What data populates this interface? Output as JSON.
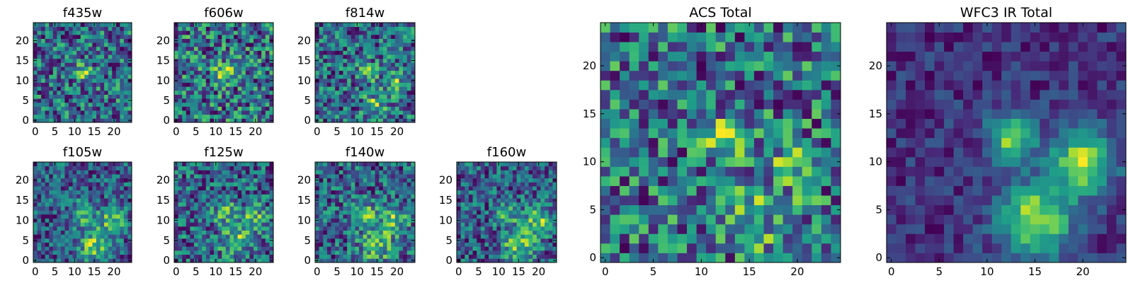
{
  "chart_data": [
    {
      "type": "heatmap",
      "title": "f435w",
      "grid_size": 25,
      "colormap": "viridis",
      "x_ticks": [
        0,
        5,
        10,
        15,
        20
      ],
      "y_ticks": [
        0,
        5,
        10,
        15,
        20
      ],
      "xlim": [
        -0.5,
        24.5
      ],
      "ylim": [
        -0.5,
        24.5
      ],
      "seed": 11,
      "noise_scale": 0.42,
      "sources": [
        {
          "x": 12,
          "y": 12.5,
          "sigma": 1.6,
          "amp": 0.45
        }
      ]
    },
    {
      "type": "heatmap",
      "title": "f606w",
      "grid_size": 25,
      "colormap": "viridis",
      "x_ticks": [
        0,
        5,
        10,
        15,
        20
      ],
      "y_ticks": [
        0,
        5,
        10,
        15,
        20
      ],
      "xlim": [
        -0.5,
        24.5
      ],
      "ylim": [
        -0.5,
        24.5
      ],
      "seed": 23,
      "noise_scale": 0.36,
      "sources": [
        {
          "x": 12.5,
          "y": 12,
          "sigma": 1.6,
          "amp": 0.55
        }
      ]
    },
    {
      "type": "heatmap",
      "title": "f814w",
      "grid_size": 25,
      "colormap": "viridis",
      "x_ticks": [
        0,
        5,
        10,
        15,
        20
      ],
      "y_ticks": [
        0,
        5,
        10,
        15,
        20
      ],
      "xlim": [
        -0.5,
        24.5
      ],
      "ylim": [
        -0.5,
        24.5
      ],
      "seed": 37,
      "noise_scale": 0.42,
      "sources": [
        {
          "x": 13,
          "y": 12,
          "sigma": 1.6,
          "amp": 0.45
        },
        {
          "x": 19.5,
          "y": 9.5,
          "sigma": 1.8,
          "amp": 0.4
        },
        {
          "x": 14.5,
          "y": 4,
          "sigma": 1.8,
          "amp": 0.45
        }
      ]
    },
    {
      "type": "heatmap",
      "title": "f105w",
      "grid_size": 25,
      "colormap": "viridis",
      "x_ticks": [
        0,
        5,
        10,
        15,
        20
      ],
      "y_ticks": [
        0,
        5,
        10,
        15,
        20
      ],
      "xlim": [
        -0.5,
        24.5
      ],
      "ylim": [
        -0.5,
        24.5
      ],
      "seed": 41,
      "noise_scale": 0.32,
      "sources": [
        {
          "x": 12.5,
          "y": 12,
          "sigma": 2.0,
          "amp": 0.45
        },
        {
          "x": 19.5,
          "y": 10,
          "sigma": 2.2,
          "amp": 0.45
        },
        {
          "x": 15,
          "y": 4,
          "sigma": 2.8,
          "amp": 0.5
        }
      ]
    },
    {
      "type": "heatmap",
      "title": "f125w",
      "grid_size": 25,
      "colormap": "viridis",
      "x_ticks": [
        0,
        5,
        10,
        15,
        20
      ],
      "y_ticks": [
        0,
        5,
        10,
        15,
        20
      ],
      "xlim": [
        -0.5,
        24.5
      ],
      "ylim": [
        -0.5,
        24.5
      ],
      "seed": 53,
      "noise_scale": 0.4,
      "sources": [
        {
          "x": 12.5,
          "y": 12,
          "sigma": 2.0,
          "amp": 0.35
        },
        {
          "x": 19.5,
          "y": 10,
          "sigma": 2.2,
          "amp": 0.45
        },
        {
          "x": 15,
          "y": 5,
          "sigma": 2.6,
          "amp": 0.45
        }
      ]
    },
    {
      "type": "heatmap",
      "title": "f140w",
      "grid_size": 25,
      "colormap": "viridis",
      "x_ticks": [
        0,
        5,
        10,
        15,
        20
      ],
      "y_ticks": [
        0,
        5,
        10,
        15,
        20
      ],
      "xlim": [
        -0.5,
        24.5
      ],
      "ylim": [
        -0.5,
        24.5
      ],
      "seed": 67,
      "noise_scale": 0.36,
      "sources": [
        {
          "x": 12.5,
          "y": 12,
          "sigma": 2.0,
          "amp": 0.4
        },
        {
          "x": 19.5,
          "y": 10,
          "sigma": 2.2,
          "amp": 0.45
        },
        {
          "x": 15,
          "y": 4,
          "sigma": 2.8,
          "amp": 0.5
        }
      ]
    },
    {
      "type": "heatmap",
      "title": "f160w",
      "grid_size": 25,
      "colormap": "viridis",
      "x_ticks": [
        0,
        5,
        10,
        15,
        20
      ],
      "y_ticks": [
        0,
        5,
        10,
        15,
        20
      ],
      "xlim": [
        -0.5,
        24.5
      ],
      "ylim": [
        -0.5,
        24.5
      ],
      "seed": 79,
      "noise_scale": 0.3,
      "sources": [
        {
          "x": 12.5,
          "y": 12,
          "sigma": 2.0,
          "amp": 0.35
        },
        {
          "x": 20,
          "y": 10,
          "sigma": 2.2,
          "amp": 0.45
        },
        {
          "x": 15,
          "y": 4,
          "sigma": 2.8,
          "amp": 0.45
        }
      ]
    },
    {
      "type": "heatmap",
      "title": "ACS Total",
      "grid_size": 25,
      "colormap": "viridis",
      "x_ticks": [
        0,
        5,
        10,
        15,
        20
      ],
      "y_ticks": [
        0,
        5,
        10,
        15,
        20
      ],
      "xlim": [
        -0.5,
        24.5
      ],
      "ylim": [
        -0.5,
        24.5
      ],
      "seed": 97,
      "noise_scale": 0.34,
      "sources": [
        {
          "x": 12.5,
          "y": 12.5,
          "sigma": 1.4,
          "amp": 0.45
        },
        {
          "x": 19.5,
          "y": 10,
          "sigma": 1.8,
          "amp": 0.25
        },
        {
          "x": 16,
          "y": 4,
          "sigma": 2.6,
          "amp": 0.2
        }
      ]
    },
    {
      "type": "heatmap",
      "title": "WFC3 IR Total",
      "grid_size": 25,
      "colormap": "viridis",
      "x_ticks": [
        0,
        5,
        10,
        15,
        20
      ],
      "y_ticks": [
        0,
        5,
        10,
        15,
        20
      ],
      "xlim": [
        -0.5,
        24.5
      ],
      "ylim": [
        -0.5,
        24.5
      ],
      "seed": 113,
      "noise_scale": 0.12,
      "sources": [
        {
          "x": 12.5,
          "y": 12.5,
          "sigma": 1.7,
          "amp": 0.55
        },
        {
          "x": 20,
          "y": 10,
          "sigma": 2.3,
          "amp": 0.6
        },
        {
          "x": 15,
          "y": 4,
          "sigma": 2.7,
          "amp": 0.6
        }
      ]
    }
  ]
}
